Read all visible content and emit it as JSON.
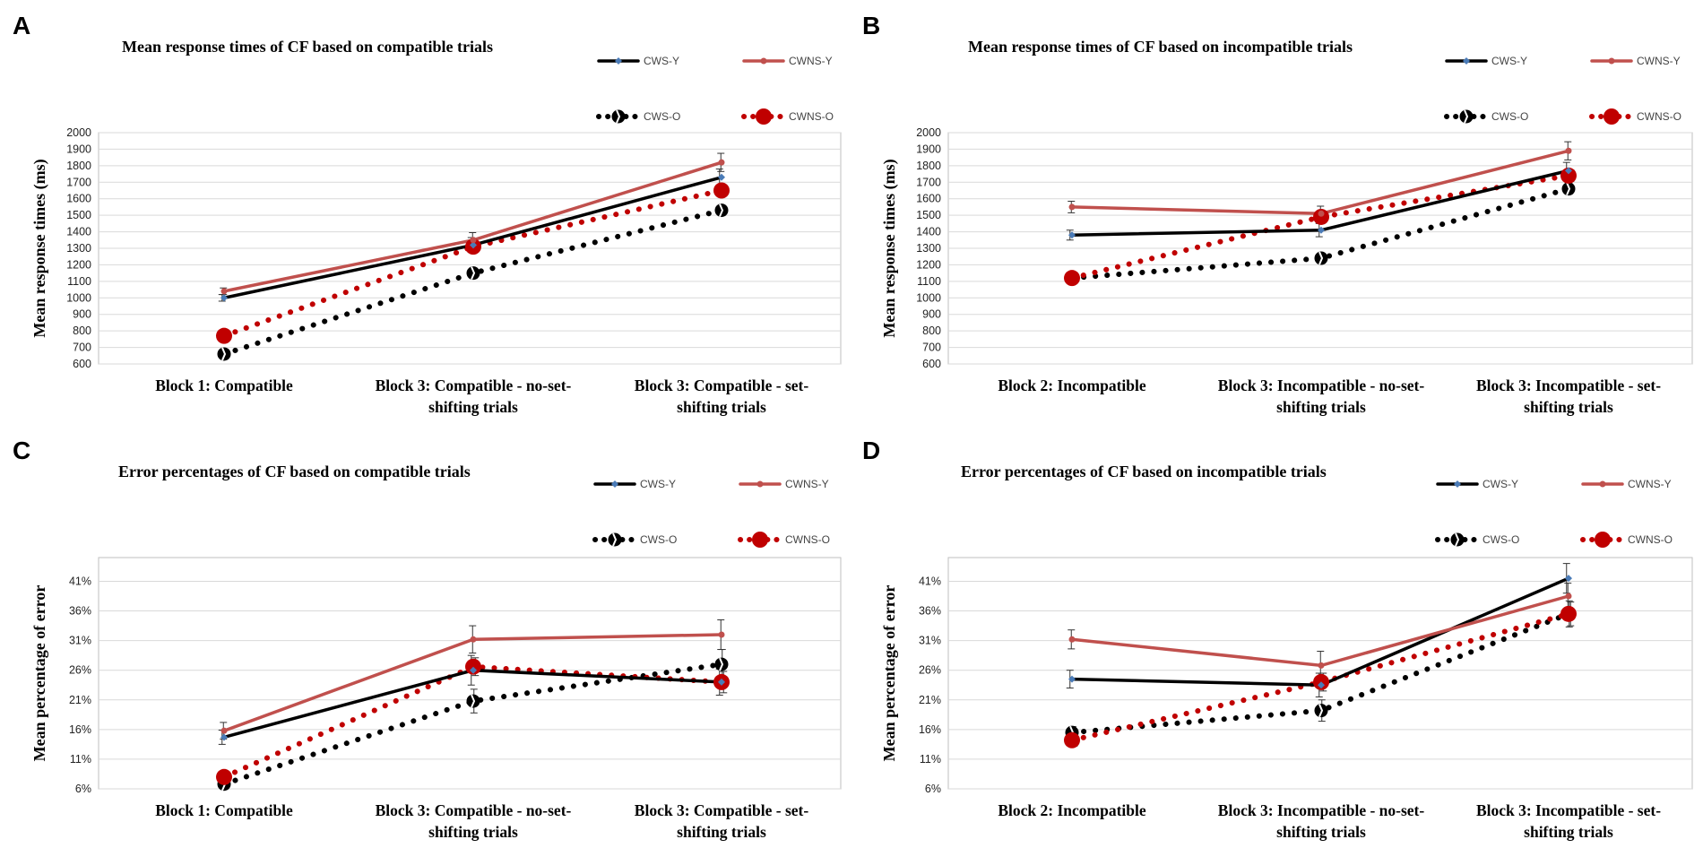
{
  "panel_letters": [
    "A",
    "B",
    "C",
    "D"
  ],
  "legend": {
    "cws_y": "CWS-Y",
    "cwns_y": "CWNS-Y",
    "cws_o": "CWS-O",
    "cwns_o": "CWNS-O"
  },
  "colors": {
    "cws_y": "#000000",
    "cws_y_marker": "#4a7bb7",
    "cwns_y": "#c0504d",
    "cws_o": "#000000",
    "cwns_o": "#c00000",
    "error_bar": "#333333",
    "grid": "#d9d9d9",
    "axis": "#bfbfbf"
  },
  "chart_data": [
    {
      "panel": "A",
      "type": "line",
      "title": "Mean response times of CF based on compatible trials",
      "ylabel": "Mean response times (ms)",
      "xlabel": "",
      "ylim": [
        600,
        2000
      ],
      "yticks": [
        "600",
        "700",
        "800",
        "900",
        "1000",
        "1100",
        "1200",
        "1300",
        "1400",
        "1500",
        "1600",
        "1700",
        "1800",
        "1900",
        "2000"
      ],
      "categories": [
        [
          "Block 1: Compatible"
        ],
        [
          "Block 3: Compatible - no-set-",
          "shifting trials"
        ],
        [
          "Block 3: Compatible - set-",
          "shifting trials"
        ]
      ],
      "series": [
        {
          "name": "CWS-Y",
          "values": [
            1000,
            1320,
            1730
          ],
          "errors": [
            20,
            45,
            50
          ]
        },
        {
          "name": "CWNS-Y",
          "values": [
            1040,
            1350,
            1820
          ],
          "errors": [
            20,
            45,
            55
          ]
        },
        {
          "name": "CWS-O",
          "values": [
            660,
            1150,
            1530
          ],
          "errors": [
            20,
            30,
            30
          ]
        },
        {
          "name": "CWNS-O",
          "values": [
            770,
            1310,
            1650
          ],
          "errors": [
            20,
            30,
            30
          ]
        }
      ]
    },
    {
      "panel": "B",
      "type": "line",
      "title": "Mean response times of CF based on incompatible trials",
      "ylabel": "Mean response times (ms)",
      "xlabel": "",
      "ylim": [
        600,
        2000
      ],
      "yticks": [
        "600",
        "700",
        "800",
        "900",
        "1000",
        "1100",
        "1200",
        "1300",
        "1400",
        "1500",
        "1600",
        "1700",
        "1800",
        "1900",
        "2000"
      ],
      "categories": [
        [
          "Block 2: Incompatible"
        ],
        [
          "Block 3: Incompatible - no-set-",
          "shifting trials"
        ],
        [
          "Block 3: Incompatible - set-",
          "shifting trials"
        ]
      ],
      "series": [
        {
          "name": "CWS-Y",
          "values": [
            1380,
            1410,
            1770
          ],
          "errors": [
            30,
            40,
            50
          ]
        },
        {
          "name": "CWNS-Y",
          "values": [
            1550,
            1510,
            1890
          ],
          "errors": [
            35,
            45,
            55
          ]
        },
        {
          "name": "CWS-O",
          "values": [
            1120,
            1240,
            1660
          ],
          "errors": [
            20,
            30,
            30
          ]
        },
        {
          "name": "CWNS-O",
          "values": [
            1120,
            1490,
            1740
          ],
          "errors": [
            20,
            30,
            35
          ]
        }
      ]
    },
    {
      "panel": "C",
      "type": "line",
      "title": "Error percentages of CF based on compatible trials",
      "ylabel": "Mean percentage of error",
      "xlabel": "",
      "ylim": [
        6,
        45
      ],
      "yticks": [
        "6%",
        "11%",
        "16%",
        "21%",
        "26%",
        "31%",
        "36%",
        "41%"
      ],
      "categories": [
        [
          "Block 1: Compatible"
        ],
        [
          "Block 3: Compatible - no-set-",
          "shifting trials"
        ],
        [
          "Block 3: Compatible - set-",
          "shifting trials"
        ]
      ],
      "series": [
        {
          "name": "CWS-Y",
          "values": [
            14.7,
            26,
            24
          ],
          "errors": [
            1.2,
            2.5,
            2.2
          ]
        },
        {
          "name": "CWNS-Y",
          "values": [
            15.8,
            31.2,
            32
          ],
          "errors": [
            1.4,
            2.3,
            2.5
          ]
        },
        {
          "name": "CWS-O",
          "values": [
            6.8,
            20.8,
            27
          ],
          "errors": [
            0.8,
            2.0,
            2.5
          ]
        },
        {
          "name": "CWNS-O",
          "values": [
            8,
            26.6,
            24
          ],
          "errors": [
            0.8,
            1.5,
            1.8
          ]
        }
      ]
    },
    {
      "panel": "D",
      "type": "line",
      "title": "Error percentages of CF based on incompatible trials",
      "ylabel": "Mean percentage of error",
      "xlabel": "",
      "ylim": [
        6,
        45
      ],
      "yticks": [
        "6%",
        "11%",
        "16%",
        "21%",
        "26%",
        "31%",
        "36%",
        "41%"
      ],
      "categories": [
        [
          "Block 2: Incompatible"
        ],
        [
          "Block 3: Incompatible - no-set-",
          "shifting trials"
        ],
        [
          "Block 3: Incompatible - set-",
          "shifting trials"
        ]
      ],
      "series": [
        {
          "name": "CWS-Y",
          "values": [
            24.5,
            23.5,
            41.5
          ],
          "errors": [
            1.5,
            2.0,
            2.5
          ]
        },
        {
          "name": "CWNS-Y",
          "values": [
            31.2,
            26.8,
            38.5
          ],
          "errors": [
            1.6,
            2.4,
            2.2
          ]
        },
        {
          "name": "CWS-O",
          "values": [
            15.5,
            19.2,
            35.5
          ],
          "errors": [
            1.0,
            1.8,
            2.2
          ]
        },
        {
          "name": "CWNS-O",
          "values": [
            14.2,
            24,
            35.5
          ],
          "errors": [
            1.0,
            1.5,
            2.0
          ]
        }
      ]
    }
  ]
}
